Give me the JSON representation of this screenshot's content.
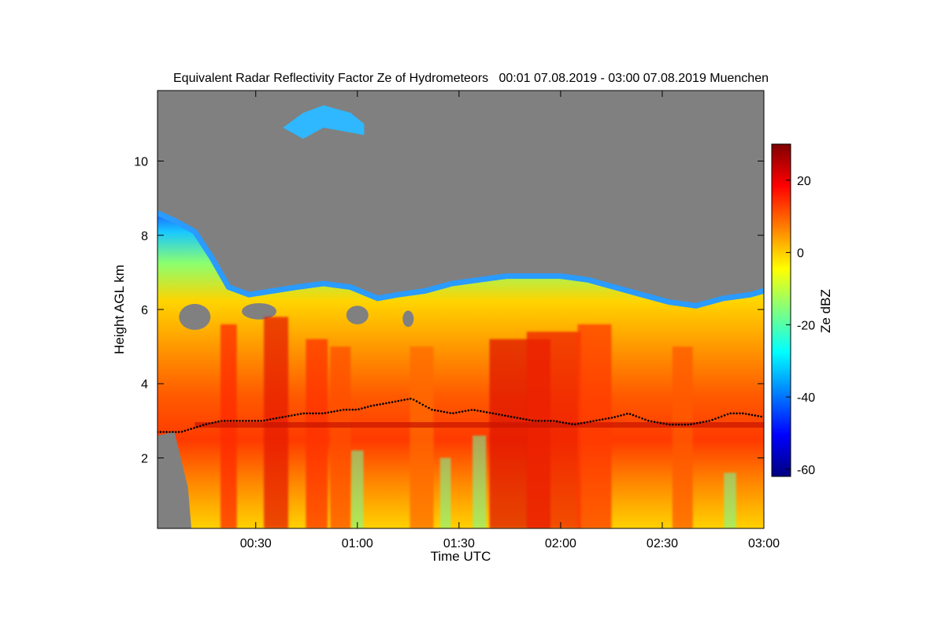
{
  "chart_data": {
    "type": "heatmap",
    "title": "Equivalent Radar Reflectivity Factor Ze of Hydrometeors   00:01 07.08.2019 - 03:00 07.08.2019 Muenchen",
    "xlabel": "Time UTC",
    "ylabel": "Height AGL km",
    "x_ticks": [
      "00:30",
      "01:00",
      "01:30",
      "02:00",
      "02:30",
      "03:00"
    ],
    "x_tick_minutes": [
      30,
      60,
      90,
      120,
      150,
      180
    ],
    "xlim_minutes": [
      1,
      180
    ],
    "y_ticks": [
      "2",
      "4",
      "6",
      "8",
      "10"
    ],
    "y_tick_values": [
      2,
      4,
      6,
      8,
      10
    ],
    "ylim": [
      0.1,
      11.9
    ],
    "colorbar": {
      "label": "Ze dBZ",
      "range": [
        -62,
        30
      ],
      "ticks": [
        "20",
        "0",
        "-20",
        "-40",
        "-60"
      ],
      "tick_values": [
        20,
        0,
        -20,
        -40,
        -60
      ],
      "colors": [
        "#00007f",
        "#0000ff",
        "#007fff",
        "#00ffff",
        "#7fff7f",
        "#ffff00",
        "#ff7f00",
        "#ff0000",
        "#7f0000"
      ]
    },
    "background_color": "#808080",
    "cloud_top_km": [
      [
        1,
        8.6
      ],
      [
        6,
        8.4
      ],
      [
        12,
        8.1
      ],
      [
        17,
        7.4
      ],
      [
        22,
        6.6
      ],
      [
        28,
        6.4
      ],
      [
        35,
        6.5
      ],
      [
        42,
        6.6
      ],
      [
        50,
        6.7
      ],
      [
        58,
        6.6
      ],
      [
        66,
        6.3
      ],
      [
        72,
        6.4
      ],
      [
        80,
        6.5
      ],
      [
        88,
        6.7
      ],
      [
        96,
        6.8
      ],
      [
        104,
        6.9
      ],
      [
        112,
        6.9
      ],
      [
        120,
        6.9
      ],
      [
        128,
        6.8
      ],
      [
        136,
        6.6
      ],
      [
        144,
        6.4
      ],
      [
        152,
        6.2
      ],
      [
        160,
        6.1
      ],
      [
        168,
        6.3
      ],
      [
        176,
        6.4
      ],
      [
        180,
        6.5
      ]
    ],
    "upper_cloud_km": [
      [
        38,
        10.9
      ],
      [
        44,
        11.3
      ],
      [
        50,
        11.5
      ],
      [
        58,
        11.3
      ],
      [
        62,
        11.0
      ]
    ],
    "melting_layer_km": 2.9,
    "cloud_base_km": [
      [
        1,
        2.7
      ],
      [
        8,
        2.7
      ],
      [
        15,
        2.9
      ],
      [
        20,
        3.0
      ],
      [
        26,
        3.0
      ],
      [
        32,
        3.0
      ],
      [
        38,
        3.1
      ],
      [
        44,
        3.2
      ],
      [
        50,
        3.2
      ],
      [
        56,
        3.3
      ],
      [
        60,
        3.3
      ],
      [
        64,
        3.4
      ],
      [
        70,
        3.5
      ],
      [
        76,
        3.6
      ],
      [
        82,
        3.3
      ],
      [
        88,
        3.2
      ],
      [
        94,
        3.3
      ],
      [
        100,
        3.2
      ],
      [
        106,
        3.1
      ],
      [
        112,
        3.0
      ],
      [
        118,
        3.0
      ],
      [
        124,
        2.9
      ],
      [
        130,
        3.0
      ],
      [
        136,
        3.1
      ],
      [
        140,
        3.2
      ],
      [
        146,
        3.0
      ],
      [
        152,
        2.9
      ],
      [
        158,
        2.9
      ],
      [
        164,
        3.0
      ],
      [
        170,
        3.2
      ],
      [
        174,
        3.2
      ],
      [
        180,
        3.1
      ]
    ]
  }
}
